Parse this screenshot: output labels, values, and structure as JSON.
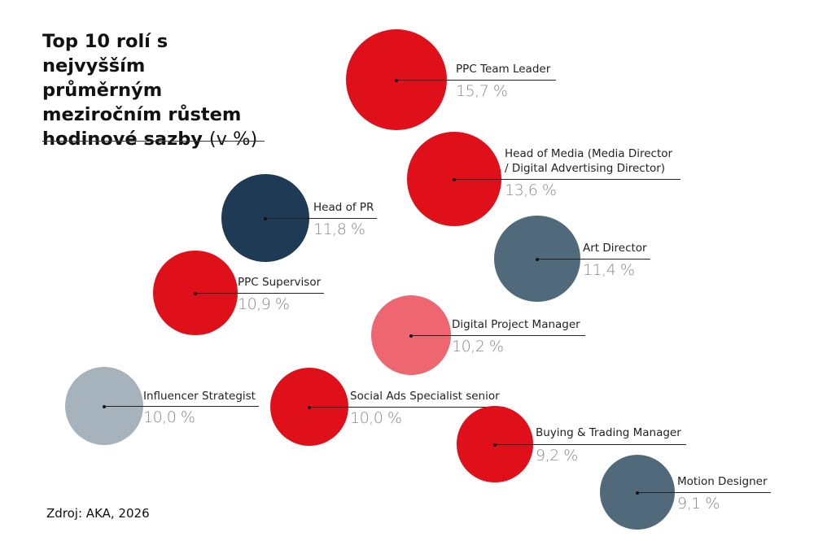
{
  "chart_data": {
    "type": "bubble",
    "title": "Top 10 rolí s nejvyšším průměrným meziročním růstem hodinové sazby",
    "title_unit": "(v %)",
    "source": "Zdroj: AKA, 2026",
    "unit": "%",
    "items": [
      {
        "name": "PPC Team Leader",
        "value": 15.7,
        "label": "15,7 %",
        "color": "#E0101A"
      },
      {
        "name": "Head of Media (Media Director / Digital Advertising Director)",
        "name_line1": "Head of Media (Media Director",
        "name_line2": "/ Digital Advertising Director)",
        "value": 13.6,
        "label": "13,6 %",
        "color": "#E0101A"
      },
      {
        "name": "Head of PR",
        "value": 11.8,
        "label": "11,8 %",
        "color": "#1E3A54"
      },
      {
        "name": "Art Director",
        "value": 11.4,
        "label": "11,4 %",
        "color": "#516A7B"
      },
      {
        "name": "PPC Supervisor",
        "value": 10.9,
        "label": "10,9 %",
        "color": "#E0101A"
      },
      {
        "name": "Digital Project Manager",
        "value": 10.2,
        "label": "10,2 %",
        "color": "#EE6670"
      },
      {
        "name": "Influencer Strategist",
        "value": 10.0,
        "label": "10,0 %",
        "color": "#A6B2BC"
      },
      {
        "name": "Social Ads Specialist senior",
        "value": 10.0,
        "label": "10,0 %",
        "color": "#E0101A"
      },
      {
        "name": "Buying & Trading Manager",
        "value": 9.2,
        "label": "9,2 %",
        "color": "#E0101A"
      },
      {
        "name": "Motion Designer",
        "value": 9.1,
        "label": "9,1 %",
        "color": "#516A7B"
      }
    ]
  }
}
